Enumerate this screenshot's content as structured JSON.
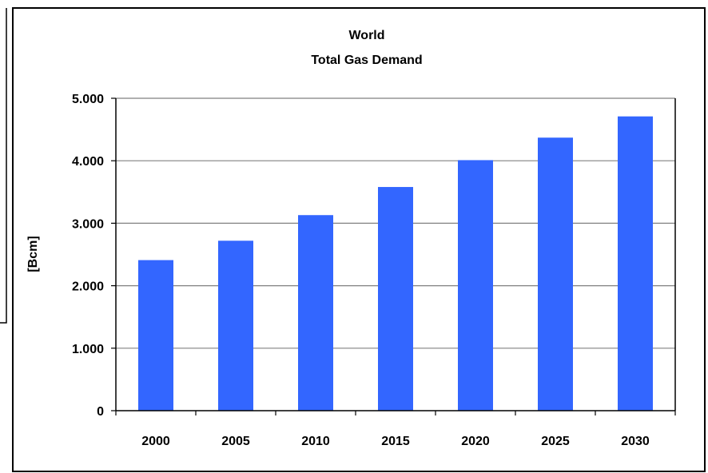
{
  "chart_data": {
    "type": "bar",
    "title_lines": [
      "World",
      "Total Gas Demand"
    ],
    "xlabel": "",
    "ylabel": "[Bcm]",
    "categories": [
      "2000",
      "2005",
      "2010",
      "2015",
      "2020",
      "2025",
      "2030"
    ],
    "values": [
      2410,
      2720,
      3130,
      3580,
      4010,
      4370,
      4710
    ],
    "ylim": [
      0,
      5000
    ],
    "yticks": [
      0,
      1000,
      2000,
      3000,
      4000,
      5000
    ],
    "ytick_labels": [
      "0",
      "1.000",
      "2.000",
      "3.000",
      "4.000",
      "5.000"
    ],
    "grid": true,
    "legend": "none",
    "bar_color": "#3366FF",
    "grid_color": "#808080"
  }
}
